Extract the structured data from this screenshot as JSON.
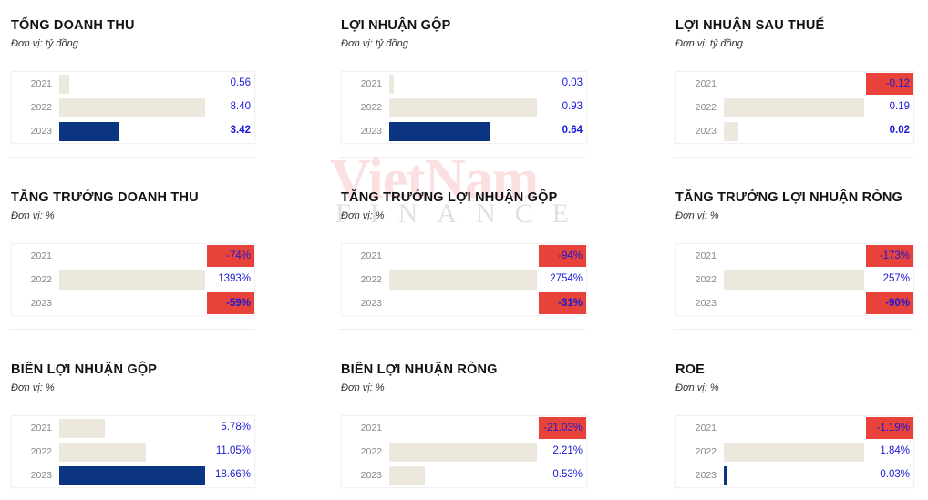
{
  "watermark": {
    "line1": "VietNam",
    "line2": "FINANCE"
  },
  "chart_data": [
    {
      "type": "bar",
      "title": "TỔNG DOANH THU",
      "unit": "Đơn vị: tỷ đồng",
      "categories": [
        "2021",
        "2022",
        "2023"
      ],
      "values": [
        0.56,
        8.4,
        3.42
      ],
      "labels": [
        "0.56",
        "8.40",
        "3.42"
      ],
      "highlight": [
        false,
        false,
        true
      ],
      "bold": [
        false,
        false,
        true
      ]
    },
    {
      "type": "bar",
      "title": "LỢI NHUẬN GỘP",
      "unit": "Đơn vị: tỷ đồng",
      "categories": [
        "2021",
        "2022",
        "2023"
      ],
      "values": [
        0.03,
        0.93,
        0.64
      ],
      "labels": [
        "0.03",
        "0.93",
        "0.64"
      ],
      "highlight": [
        false,
        false,
        true
      ],
      "bold": [
        false,
        false,
        true
      ]
    },
    {
      "type": "bar",
      "title": "LỢI NHUẬN SAU THUẾ",
      "unit": "Đơn vị: tỷ đồng",
      "categories": [
        "2021",
        "2022",
        "2023"
      ],
      "values": [
        -0.12,
        0.19,
        0.02
      ],
      "labels": [
        "-0.12",
        "0.19",
        "0.02"
      ],
      "highlight": [
        false,
        false,
        false
      ],
      "bold": [
        false,
        false,
        true
      ]
    },
    {
      "type": "bar",
      "title": "TĂNG TRƯỞNG DOANH THU",
      "unit": "Đơn vị: %",
      "categories": [
        "2021",
        "2022",
        "2023"
      ],
      "values": [
        -74,
        1393,
        -59
      ],
      "labels": [
        "-74%",
        "1393%",
        "-59%"
      ],
      "highlight": [
        false,
        false,
        false
      ],
      "bold": [
        false,
        false,
        true
      ]
    },
    {
      "type": "bar",
      "title": "TĂNG TRƯỞNG LỢI NHUẬN GỘP",
      "unit": "Đơn vị: %",
      "categories": [
        "2021",
        "2022",
        "2023"
      ],
      "values": [
        -94,
        2754,
        -31
      ],
      "labels": [
        "-94%",
        "2754%",
        "-31%"
      ],
      "highlight": [
        false,
        false,
        false
      ],
      "bold": [
        false,
        false,
        true
      ]
    },
    {
      "type": "bar",
      "title": "TĂNG TRƯỞNG LỢI NHUẬN RÒNG",
      "unit": "Đơn vị: %",
      "categories": [
        "2021",
        "2022",
        "2023"
      ],
      "values": [
        -173,
        257,
        -90
      ],
      "labels": [
        "-173%",
        "257%",
        "-90%"
      ],
      "highlight": [
        false,
        false,
        false
      ],
      "bold": [
        false,
        false,
        true
      ]
    },
    {
      "type": "bar",
      "title": "BIÊN LỢI NHUẬN GỘP",
      "unit": "Đơn vị: %",
      "categories": [
        "2021",
        "2022",
        "2023"
      ],
      "values": [
        5.78,
        11.05,
        18.66
      ],
      "labels": [
        "5.78%",
        "11.05%",
        "18.66%"
      ],
      "highlight": [
        false,
        false,
        true
      ],
      "bold": [
        false,
        false,
        false
      ]
    },
    {
      "type": "bar",
      "title": "BIÊN LỢI NHUẬN RÒNG",
      "unit": "Đơn vị: %",
      "categories": [
        "2021",
        "2022",
        "2023"
      ],
      "values": [
        -21.03,
        2.21,
        0.53
      ],
      "labels": [
        "-21.03%",
        "2.21%",
        "0.53%"
      ],
      "highlight": [
        false,
        false,
        false
      ],
      "bold": [
        false,
        false,
        false
      ]
    },
    {
      "type": "bar",
      "title": "ROE",
      "unit": "Đơn vị: %",
      "categories": [
        "2021",
        "2022",
        "2023"
      ],
      "values": [
        -1.19,
        1.84,
        0.03
      ],
      "labels": [
        "-1.19%",
        "1.84%",
        "0.03%"
      ],
      "highlight": [
        false,
        false,
        true
      ],
      "bold": [
        false,
        false,
        false
      ]
    }
  ],
  "colors": {
    "beige": "#ede8dd",
    "navy": "#0b3581",
    "red": "#e8433b",
    "value": "#1a1ad6"
  }
}
